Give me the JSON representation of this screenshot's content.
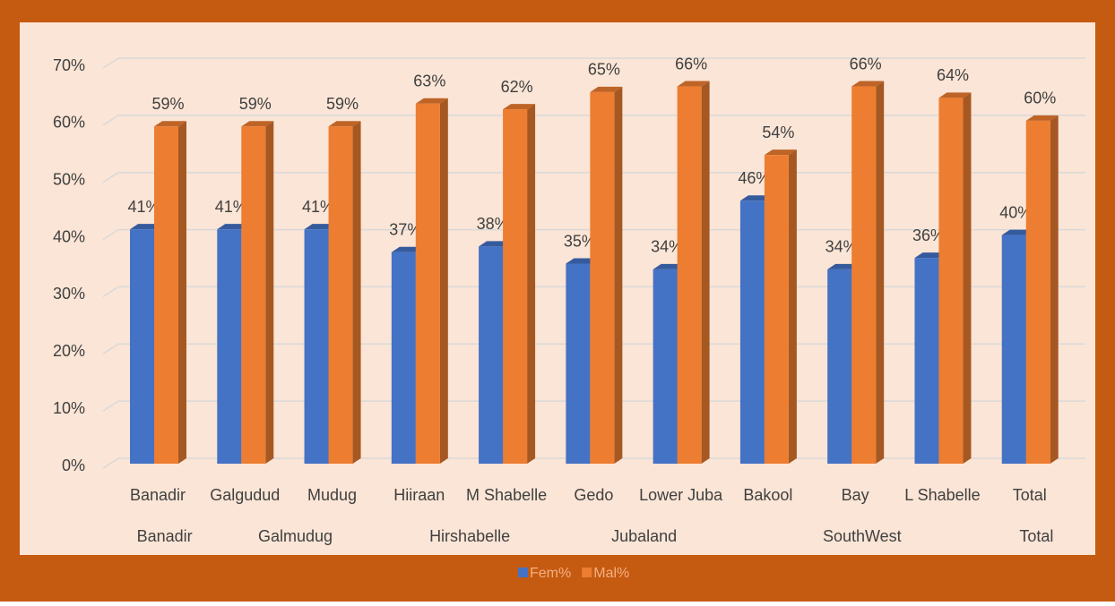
{
  "chart_data": {
    "type": "bar3d",
    "categories": [
      "Banadir",
      "Galgudud",
      "Mudug",
      "Hiiraan",
      "M Shabelle",
      "Gedo",
      "Lower Juba",
      "Bakool",
      "Bay",
      "L Shabelle",
      "Total"
    ],
    "group_labels": [
      "Banadir",
      "Galmudug",
      "Hirshabelle",
      "Jubaland",
      "SouthWest",
      "Total"
    ],
    "series": [
      {
        "name": "Fem%",
        "color": "#4472c4",
        "values": [
          41,
          41,
          41,
          37,
          38,
          35,
          34,
          46,
          34,
          36,
          40
        ],
        "value_labels": [
          "41%",
          "41%",
          "41%",
          "37%",
          "38%",
          "35%",
          "34%",
          "46%",
          "34%",
          "36%",
          "40%"
        ]
      },
      {
        "name": "Mal%",
        "color": "#ed7d31",
        "values": [
          59,
          59,
          59,
          63,
          62,
          65,
          66,
          54,
          66,
          64,
          60
        ],
        "value_labels": [
          "59%",
          "59%",
          "59%",
          "63%",
          "62%",
          "65%",
          "66%",
          "54%",
          "66%",
          "64%",
          "60%"
        ]
      }
    ],
    "ylim": [
      0,
      70
    ],
    "yticks": [
      {
        "value": 0,
        "label": "0%"
      },
      {
        "value": 10,
        "label": "10%"
      },
      {
        "value": 20,
        "label": "20%"
      },
      {
        "value": 30,
        "label": "30%"
      },
      {
        "value": 40,
        "label": "40%"
      },
      {
        "value": 50,
        "label": "50%"
      },
      {
        "value": 60,
        "label": "60%"
      },
      {
        "value": 70,
        "label": "70%"
      }
    ],
    "grid": true,
    "legend": "bottom"
  }
}
